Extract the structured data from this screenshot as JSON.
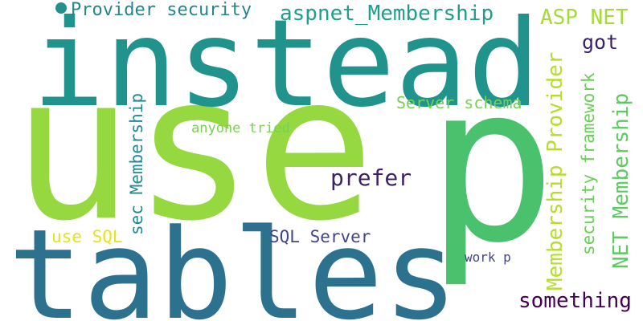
{
  "words": [
    {
      "text": "use",
      "color": "#95d840"
    },
    {
      "text": "p",
      "color": "#4ac16d"
    },
    {
      "text": "instead",
      "color": "#20938c"
    },
    {
      "text": "tables",
      "color": "#2c728e"
    },
    {
      "text": "aspnet_Membership",
      "color": "#1f9e89"
    },
    {
      "text": "Provider security",
      "color": "#25858e"
    },
    {
      "text": "ASP NET",
      "color": "#a5db36"
    },
    {
      "text": "got",
      "color": "#3b1f6d"
    },
    {
      "text": "Server schema",
      "color": "#75d054"
    },
    {
      "text": "anyone tried",
      "color": "#7ad151"
    },
    {
      "text": "prefer",
      "color": "#3e2067"
    },
    {
      "text": "Membership Provider",
      "color": "#b5de2b"
    },
    {
      "text": "security framework",
      "color": "#6ccd5a"
    },
    {
      "text": "NET Membership",
      "color": "#5ec962"
    },
    {
      "text": "sec Membership",
      "color": "#23898e"
    },
    {
      "text": "use SQL",
      "color": "#e5e419"
    },
    {
      "text": "SQL Server",
      "color": "#404688"
    },
    {
      "text": "work p",
      "color": "#414487"
    },
    {
      "text": "something",
      "color": "#440154"
    }
  ],
  "dot_color": "#21918c"
}
